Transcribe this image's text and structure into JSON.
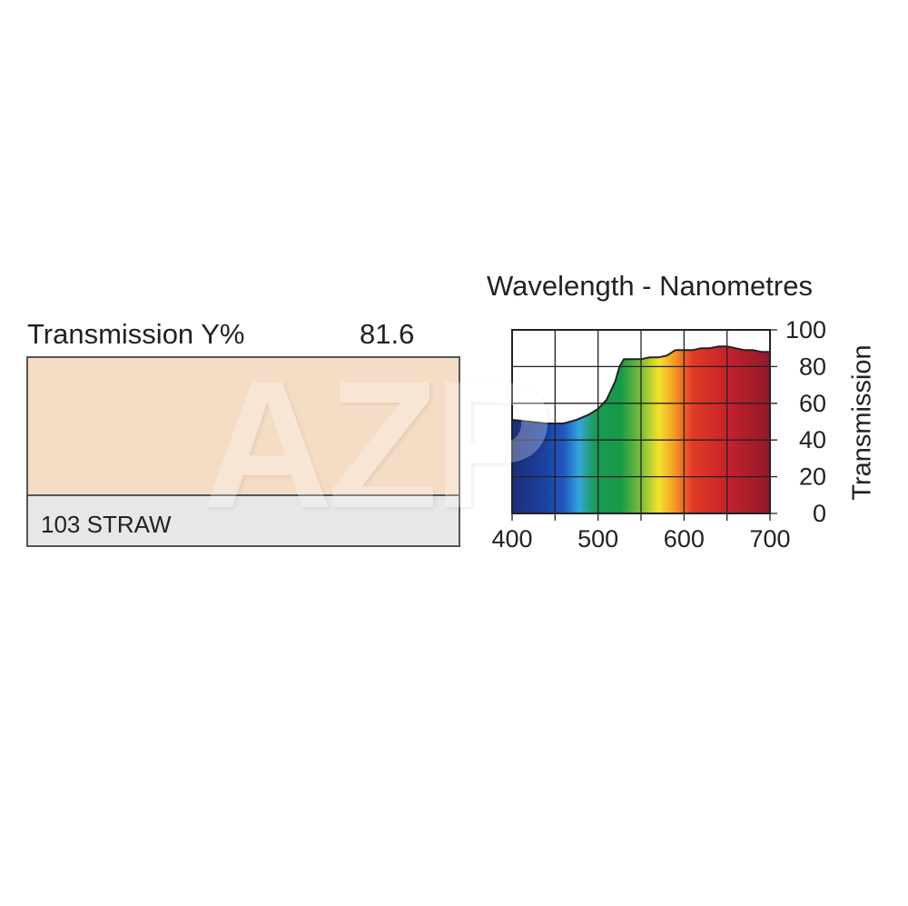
{
  "product": {
    "transmission_label": "Transmission Y%",
    "transmission_value": "81.6",
    "filter_name": "103 STRAW",
    "swatch_color": "#f5dcc5"
  },
  "watermark": {
    "text": "AZP"
  },
  "chart_data": {
    "type": "area",
    "title": "Wavelength - Nanometres",
    "xlabel": "",
    "ylabel": "Transmission",
    "xlim": [
      400,
      700
    ],
    "ylim": [
      0,
      100
    ],
    "x_ticks": [
      400,
      500,
      600,
      700
    ],
    "y_ticks": [
      0,
      20,
      40,
      60,
      80,
      100
    ],
    "grid": true,
    "fill": "visible-spectrum gradient",
    "series": [
      {
        "x": [
          400,
          420,
          440,
          460,
          475,
          490,
          500,
          510,
          520,
          525,
          530,
          540,
          550,
          560,
          570,
          580,
          590,
          600,
          610,
          620,
          630,
          640,
          650,
          660,
          670,
          680,
          690,
          700
        ],
        "values": [
          51,
          50,
          49,
          49,
          51,
          54,
          57,
          62,
          72,
          80,
          84,
          84,
          84,
          85,
          85,
          86,
          89,
          89,
          89,
          90,
          90,
          91,
          91,
          90,
          89,
          89,
          88,
          88
        ]
      }
    ]
  }
}
